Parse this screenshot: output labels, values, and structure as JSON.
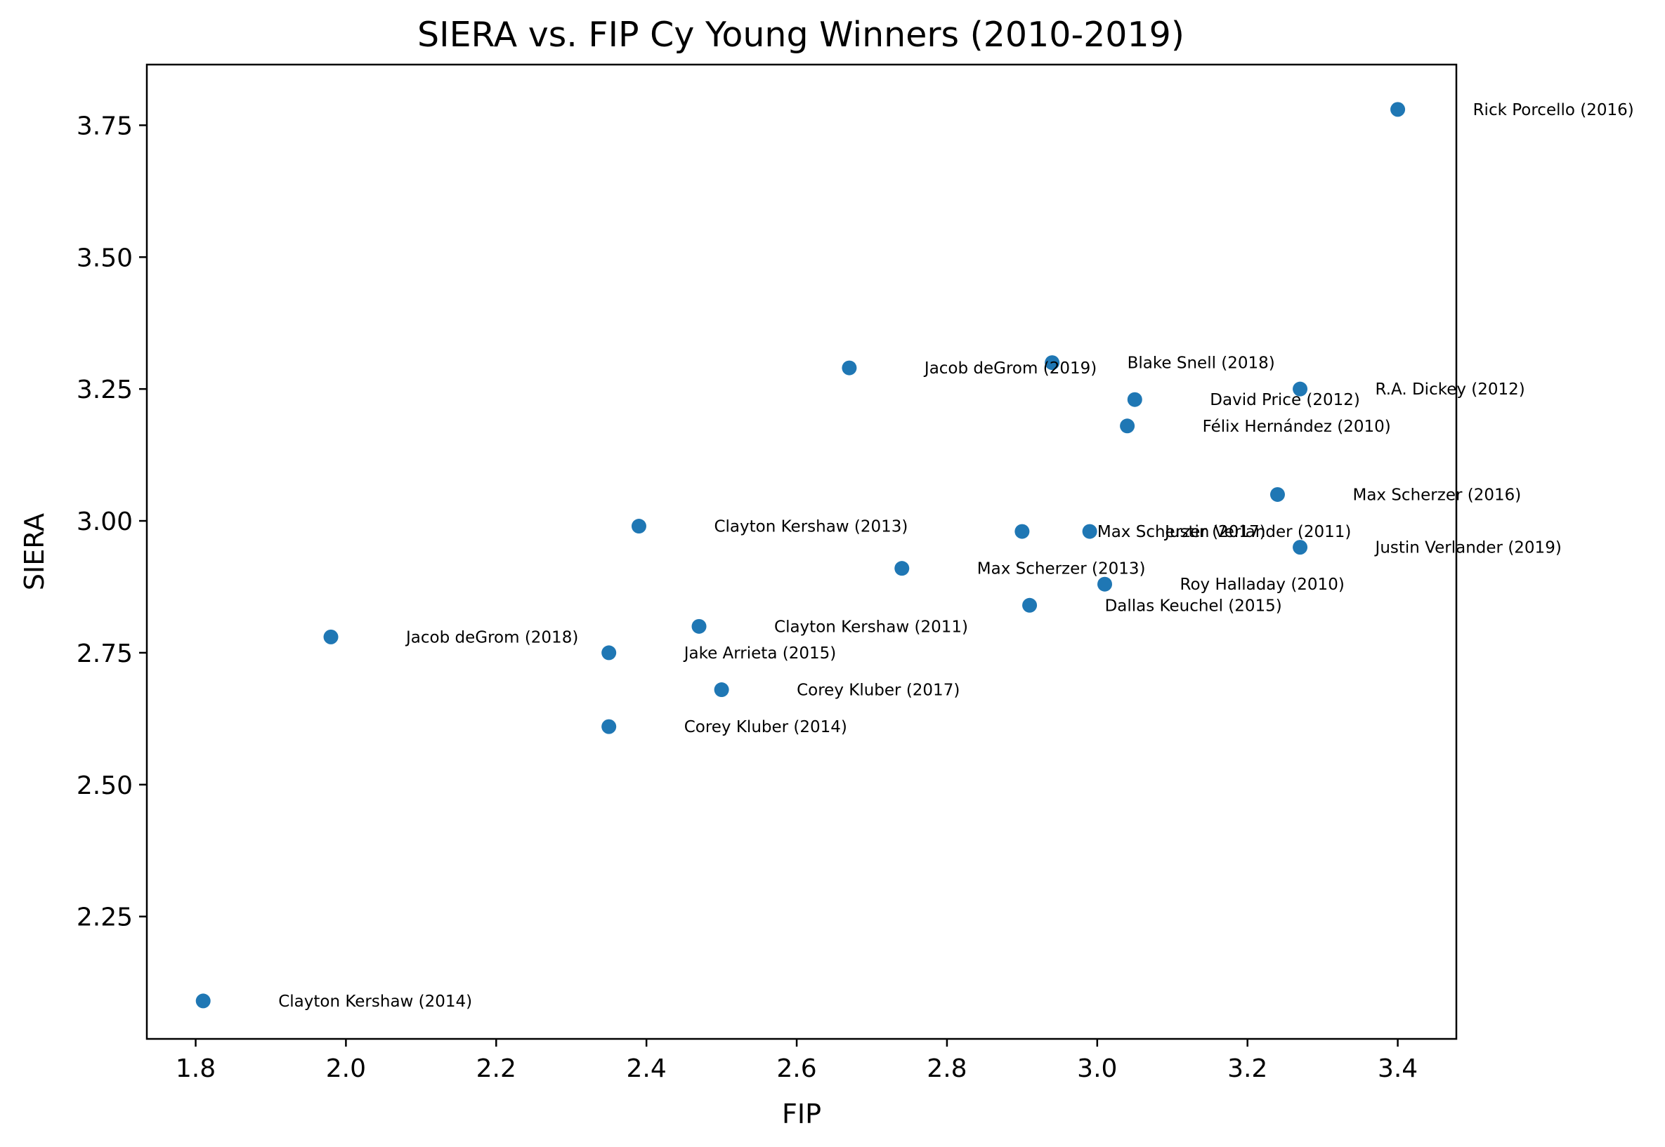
{
  "chart_data": {
    "type": "scatter",
    "title": "SIERA vs. FIP  Cy Young Winners (2010-2019)",
    "xlabel": "FIP",
    "ylabel": "SIERA",
    "xlim": [
      1.735,
      3.478
    ],
    "ylim": [
      2.018,
      3.865
    ],
    "xticks": [
      "1.8",
      "2.0",
      "2.2",
      "2.4",
      "2.6",
      "2.8",
      "3.0",
      "3.2",
      "3.4"
    ],
    "yticks": [
      "2.25",
      "2.50",
      "2.75",
      "3.00",
      "3.25",
      "3.50",
      "3.75"
    ],
    "grid": false,
    "marker_color": "#1f77b4",
    "points": [
      {
        "label": "Rick Porcello (2016)",
        "x": 3.4,
        "y": 3.78
      },
      {
        "label": "Jacob deGrom (2019)",
        "x": 2.67,
        "y": 3.29
      },
      {
        "label": "Blake Snell (2018)",
        "x": 2.94,
        "y": 3.3
      },
      {
        "label": "R.A. Dickey (2012)",
        "x": 3.27,
        "y": 3.25
      },
      {
        "label": "David Price (2012)",
        "x": 3.05,
        "y": 3.23
      },
      {
        "label": "Félix Hernández (2010)",
        "x": 3.04,
        "y": 3.18
      },
      {
        "label": "Max Scherzer (2016)",
        "x": 3.24,
        "y": 3.05
      },
      {
        "label": "Clayton Kershaw (2013)",
        "x": 2.39,
        "y": 2.99
      },
      {
        "label": "Max Scherzer (2017)",
        "x": 2.9,
        "y": 2.98
      },
      {
        "label": "Justin Verlander (2011)",
        "x": 2.99,
        "y": 2.98
      },
      {
        "label": "Justin Verlander (2019)",
        "x": 3.27,
        "y": 2.95
      },
      {
        "label": "Max Scherzer (2013)",
        "x": 2.74,
        "y": 2.91
      },
      {
        "label": "Roy Halladay (2010)",
        "x": 3.01,
        "y": 2.88
      },
      {
        "label": "Dallas Keuchel (2015)",
        "x": 2.91,
        "y": 2.84
      },
      {
        "label": "Clayton Kershaw (2011)",
        "x": 2.47,
        "y": 2.8
      },
      {
        "label": "Jacob deGrom (2018)",
        "x": 1.98,
        "y": 2.78
      },
      {
        "label": "Jake Arrieta (2015)",
        "x": 2.35,
        "y": 2.75
      },
      {
        "label": "Corey Kluber (2017)",
        "x": 2.5,
        "y": 2.68
      },
      {
        "label": "Corey Kluber (2014)",
        "x": 2.35,
        "y": 2.61
      },
      {
        "label": "Clayton Kershaw (2014)",
        "x": 1.81,
        "y": 2.09
      }
    ]
  }
}
